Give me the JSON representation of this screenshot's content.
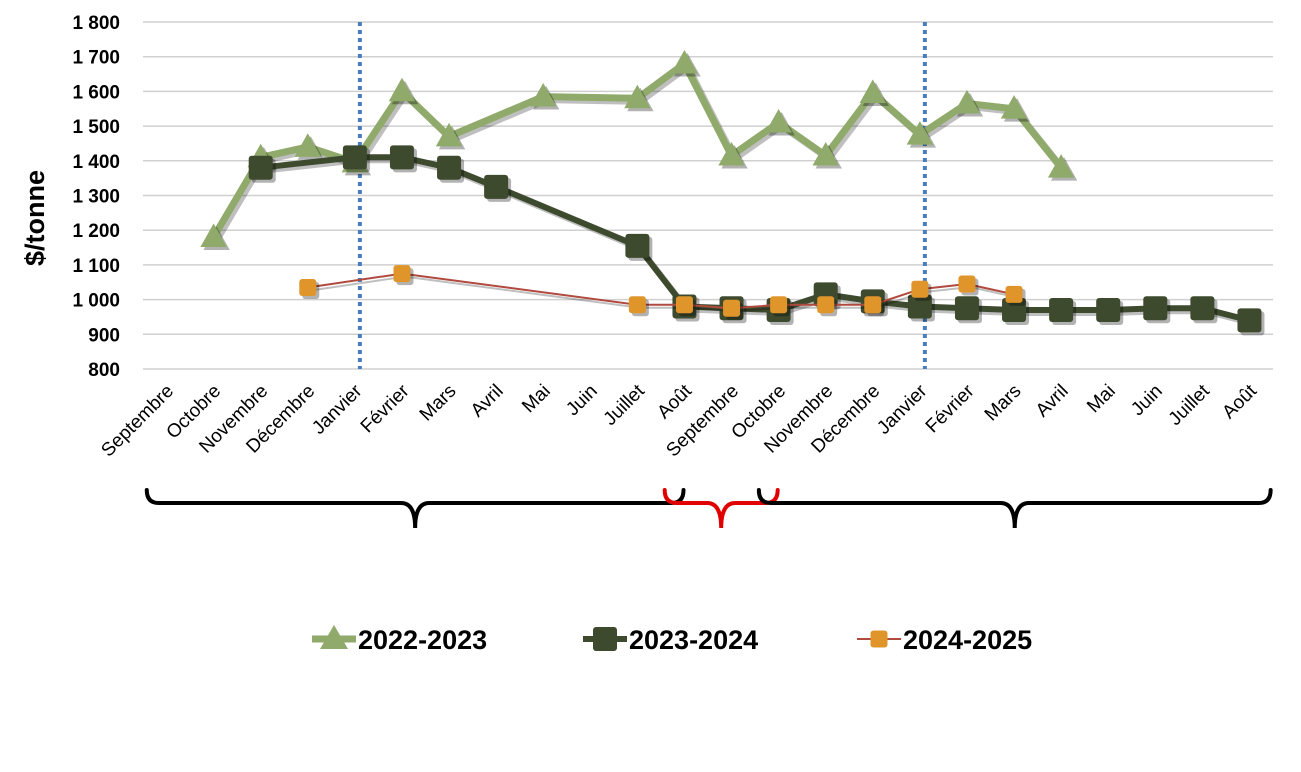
{
  "chart_data": {
    "type": "line",
    "ylabel": "$/tonne",
    "xlabel": "",
    "ylim": [
      800,
      1800
    ],
    "yticks": [
      800,
      900,
      1000,
      1100,
      1200,
      1300,
      1400,
      1500,
      1600,
      1700,
      1800
    ],
    "ytick_labels": [
      "800",
      "900",
      "1 000",
      "1 100",
      "1 200",
      "1 300",
      "1 400",
      "1 500",
      "1 600",
      "1 700",
      "1 800"
    ],
    "grid": true,
    "legend_position": "bottom",
    "categories": [
      "Septembre",
      "Octobre",
      "Novembre",
      "Décembre",
      "Janvier",
      "Février",
      "Mars",
      "Avril",
      "Mai",
      "Juin",
      "Juillet",
      "Août",
      "Septembre",
      "Octobre",
      "Novembre",
      "Décembre",
      "Janvier",
      "Février",
      "Mars",
      "Avril",
      "Mai",
      "Juin",
      "Juillet",
      "Août"
    ],
    "vertical_markers_after_index": [
      4,
      16
    ],
    "series": [
      {
        "name": "2022-2023",
        "color": "#8faa6a",
        "marker": "triangle",
        "values": [
          null,
          1180,
          1410,
          1440,
          1395,
          1600,
          1470,
          null,
          1585,
          null,
          1580,
          1680,
          1415,
          1510,
          1415,
          1595,
          1475,
          1565,
          1550,
          1380,
          null,
          null,
          null,
          null
        ]
      },
      {
        "name": "2023-2024",
        "color": "#3d4a2e",
        "marker": "square",
        "values": [
          null,
          null,
          1380,
          null,
          1410,
          1410,
          1380,
          1325,
          null,
          null,
          1155,
          980,
          975,
          970,
          1015,
          995,
          980,
          975,
          970,
          970,
          970,
          975,
          975,
          940
        ]
      },
      {
        "name": "2024-2025",
        "color": "#e0952a",
        "line_color": "#b04a3e",
        "marker": "square",
        "values": [
          null,
          null,
          null,
          1035,
          null,
          1075,
          null,
          null,
          null,
          null,
          985,
          985,
          975,
          985,
          985,
          985,
          1030,
          1045,
          1015,
          null,
          null,
          null,
          null,
          null
        ]
      }
    ],
    "brackets": [
      {
        "from_index": 0,
        "to_index": 11,
        "color": "#000000"
      },
      {
        "from_index": 11,
        "to_index": 13,
        "color": "#e00000"
      },
      {
        "from_index": 13,
        "to_index": 23,
        "color": "#000000"
      }
    ]
  }
}
